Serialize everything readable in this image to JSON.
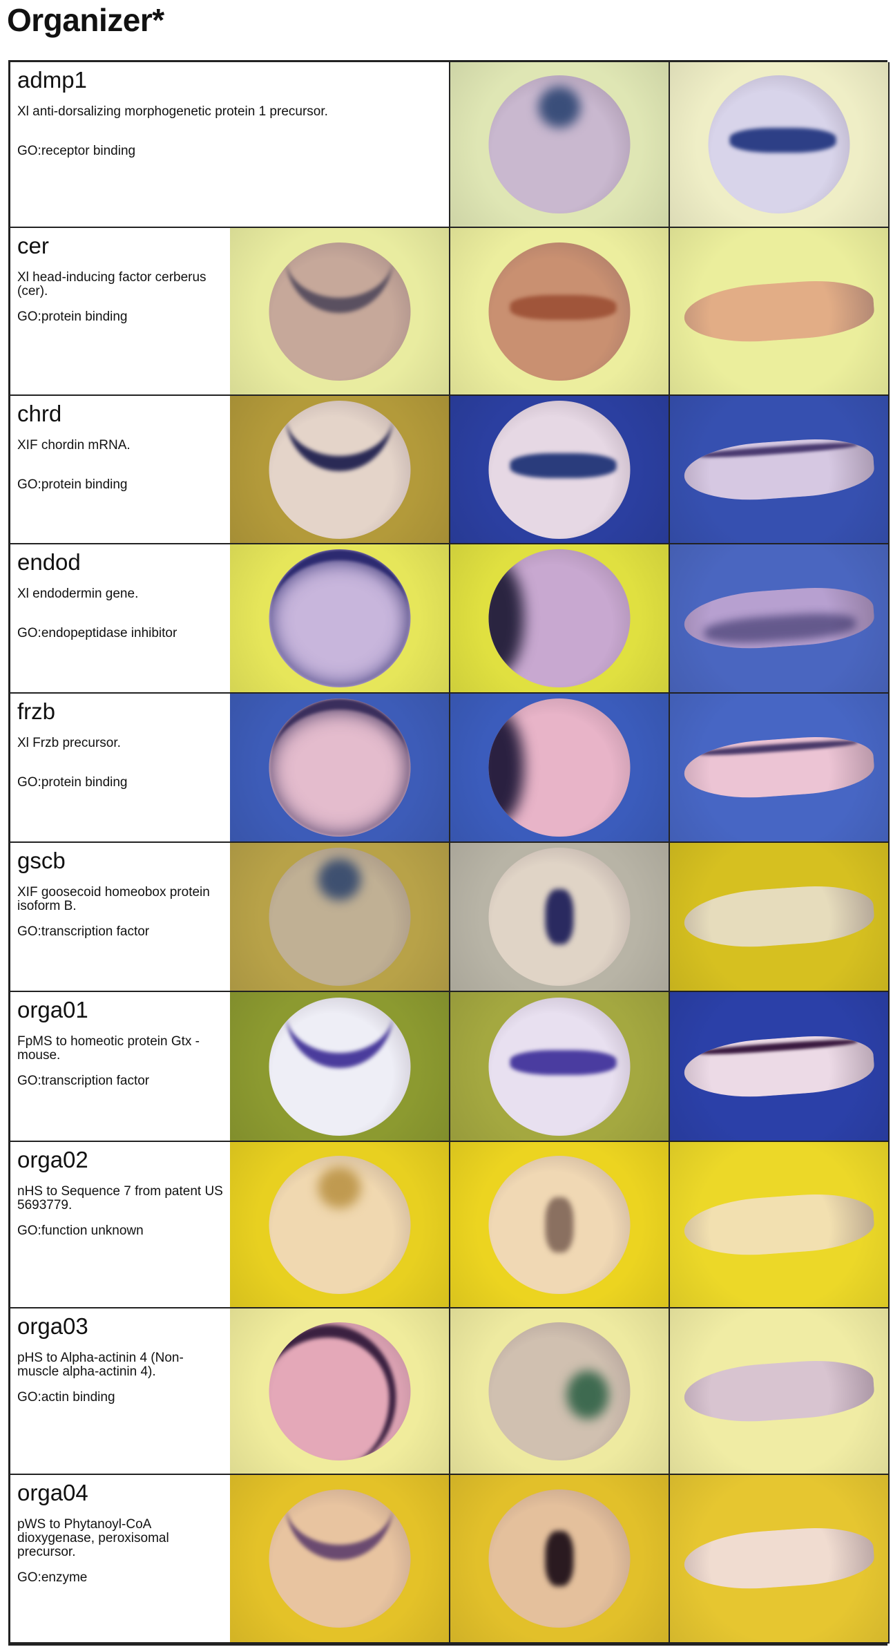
{
  "title": "Organizer*",
  "rows": [
    {
      "gene": "admp1",
      "desc": "Xl anti-dorsalizing morphogenetic protein 1 precursor.",
      "go": "GO:receptor binding",
      "images": [
        {
          "bg": "#dfe6b4",
          "embryo": "#c9b8cf",
          "stain": "#3a4e7a",
          "shape": "round",
          "pattern": "spot-top"
        },
        {
          "bg": "#efeec6",
          "embryo": "#d8d4ea",
          "stain": "#2d3f86",
          "shape": "round",
          "pattern": "band"
        }
      ]
    },
    {
      "gene": "cer",
      "desc": "Xl head-inducing factor cerberus (cer).",
      "go": "GO:protein binding",
      "images": [
        {
          "bg": "#e9eca0",
          "embryo": "#c6a89a",
          "stain": "#5a5060",
          "shape": "round",
          "pattern": "arc-top"
        },
        {
          "bg": "#ecee9e",
          "embryo": "#c99071",
          "stain": "#a0553a",
          "shape": "round",
          "pattern": "band"
        },
        {
          "bg": "#ebee9c",
          "embryo": "#e2ad86",
          "stain": "#d69a74",
          "shape": "tailbud",
          "pattern": "none"
        }
      ]
    },
    {
      "gene": "chrd",
      "desc": "XIF chordin mRNA.",
      "go": "GO:protein binding",
      "images": [
        {
          "bg": "#b39a3a",
          "embryo": "#e4d4c9",
          "stain": "#2a2a55",
          "shape": "round",
          "pattern": "arc-top"
        },
        {
          "bg": "#2b3fa0",
          "embryo": "#e6d8e4",
          "stain": "#2a3c7c",
          "shape": "round",
          "pattern": "band"
        },
        {
          "bg": "#3650b0",
          "embryo": "#d6c8e2",
          "stain": "#4a3a70",
          "shape": "tailbud",
          "pattern": "dorsal-line"
        }
      ]
    },
    {
      "gene": "endod",
      "desc": "Xl endodermin gene.",
      "go": "GO:endopeptidase inhibitor",
      "images": [
        {
          "bg": "#e6e65a",
          "embryo": "#c8b6dc",
          "stain": "#2c2a70",
          "shape": "round",
          "pattern": "ring"
        },
        {
          "bg": "#e0e040",
          "embryo": "#c8a8d0",
          "stain": "#2a2440",
          "shape": "round",
          "pattern": "left-side"
        },
        {
          "bg": "#4a66c0",
          "embryo": "#b7a0d0",
          "stain": "#2e2a60",
          "shape": "tailbud",
          "pattern": "ventral"
        }
      ]
    },
    {
      "gene": "frzb",
      "desc": "Xl Frzb precursor.",
      "go": "GO:protein binding",
      "images": [
        {
          "bg": "#3d5cb8",
          "embryo": "#e4bccd",
          "stain": "#3a2e5c",
          "shape": "round",
          "pattern": "ring"
        },
        {
          "bg": "#3b5cbc",
          "embryo": "#e8b4c8",
          "stain": "#2a2040",
          "shape": "round",
          "pattern": "left-side"
        },
        {
          "bg": "#4766c4",
          "embryo": "#ecc4d4",
          "stain": "#4a3a6a",
          "shape": "tailbud",
          "pattern": "dorsal-line"
        }
      ]
    },
    {
      "gene": "gscb",
      "desc": "XIF goosecoid homeobox protein isoform B.",
      "go": "GO:transcription factor",
      "images": [
        {
          "bg": "#b8a248",
          "embryo": "#c0b094",
          "stain": "#3e5070",
          "shape": "round",
          "pattern": "spot-top"
        },
        {
          "bg": "#b8b4a6",
          "embryo": "#e0d4c6",
          "stain": "#2a2a60",
          "shape": "round",
          "pattern": "spot-center"
        },
        {
          "bg": "#d6c020",
          "embryo": "#e6dcbc",
          "stain": "#e6dcbc",
          "shape": "tailbud",
          "pattern": "none"
        }
      ]
    },
    {
      "gene": "orga01",
      "desc": "FpMS to homeotic protein Gtx - mouse.",
      "go": "GO:transcription factor",
      "images": [
        {
          "bg": "#8c9a30",
          "embryo": "#eeeef6",
          "stain": "#4a3c9c",
          "shape": "round",
          "pattern": "arc-top"
        },
        {
          "bg": "#a4a840",
          "embryo": "#e8e0f0",
          "stain": "#4a3ca0",
          "shape": "round",
          "pattern": "band"
        },
        {
          "bg": "#2b40a8",
          "embryo": "#ecdae6",
          "stain": "#3a1a40",
          "shape": "tailbud",
          "pattern": "dorsal-line"
        }
      ]
    },
    {
      "gene": "orga02",
      "desc": "nHS to Sequence 7 from patent US 5693779.",
      "go": "GO:function unknown",
      "images": [
        {
          "bg": "#e8d020",
          "embryo": "#f0d8b0",
          "stain": "#c09a50",
          "shape": "round",
          "pattern": "spot-top"
        },
        {
          "bg": "#ecd420",
          "embryo": "#f0d8b4",
          "stain": "#8a7060",
          "shape": "round",
          "pattern": "spot-center"
        },
        {
          "bg": "#ecd828",
          "embryo": "#f2e0b0",
          "stain": "#f2e0b0",
          "shape": "tailbud",
          "pattern": "none"
        }
      ]
    },
    {
      "gene": "orga03",
      "desc": "pHS to Alpha-actinin 4 (Non-muscle alpha-actinin 4).",
      "go": "GO:actin binding",
      "images": [
        {
          "bg": "#f0ec9c",
          "embryo": "#e4a8b8",
          "stain": "#3a2040",
          "shape": "round",
          "pattern": "arc-left"
        },
        {
          "bg": "#eeeaa0",
          "embryo": "#d0c0b0",
          "stain": "#3e6a50",
          "shape": "round",
          "pattern": "spot-right"
        },
        {
          "bg": "#f0eca4",
          "embryo": "#d8c4d0",
          "stain": "#6a5a80",
          "shape": "tailbud",
          "pattern": "none"
        }
      ]
    },
    {
      "gene": "orga04",
      "desc": "pWS to Phytanoyl-CoA dioxygenase, peroxisomal precursor.",
      "go": "GO:enzyme",
      "images": [
        {
          "bg": "#e4c228",
          "embryo": "#e8c4a0",
          "stain": "#6a4a70",
          "shape": "round",
          "pattern": "arc-top"
        },
        {
          "bg": "#e2c02a",
          "embryo": "#e4c09c",
          "stain": "#2a1a20",
          "shape": "round",
          "pattern": "spot-center"
        },
        {
          "bg": "#e6c630",
          "embryo": "#f0dcd0",
          "stain": "#4a2a40",
          "shape": "tailbud",
          "pattern": "none"
        }
      ]
    }
  ]
}
